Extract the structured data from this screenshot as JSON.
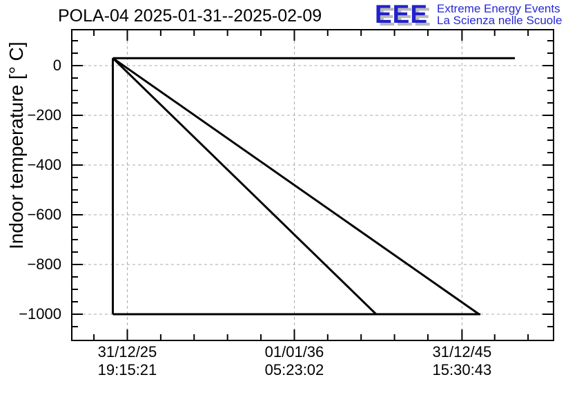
{
  "header": {
    "title": "POLA-04 2025-01-31--2025-02-09"
  },
  "logo": {
    "letters": "EEE",
    "tagline_line1": "Extreme Energy Events",
    "tagline_line2": "La Scienza nelle Scuole",
    "letters_color": "#2121cc",
    "tagline_color": "#2727d6",
    "shadow_color": "#b9b9b9"
  },
  "chart_data": {
    "type": "line",
    "title": "POLA-04 2025-01-31--2025-02-09",
    "xlabel": "",
    "ylabel": "Indoor temperature [° C]",
    "ylim": [
      -1100,
      150
    ],
    "grid": {
      "show": true,
      "style": "dashed",
      "color": "#a9a9a9"
    },
    "frame_color": "#000000",
    "line": {
      "color": "#000000",
      "width": 3
    },
    "yticks": [
      {
        "value": 0,
        "label": "0"
      },
      {
        "value": -200,
        "label": "−200"
      },
      {
        "value": -400,
        "label": "−400"
      },
      {
        "value": -600,
        "label": "−600"
      },
      {
        "value": -800,
        "label": "−800"
      },
      {
        "value": -1000,
        "label": "−1000"
      }
    ],
    "y_minor_step": 50,
    "xticks": [
      {
        "frac": 0.1153,
        "date": "31/12/25",
        "time": "19:15:21"
      },
      {
        "frac": 0.462,
        "date": "01/01/36",
        "time": "05:23:02"
      },
      {
        "frac": 0.81,
        "date": "31/12/45",
        "time": "15:30:43"
      }
    ],
    "x_minor_step_frac": 0.06932,
    "segments_units": {
      "x": "fraction of plot frame width",
      "y": "temperature in °C"
    },
    "segments": [
      {
        "x1": 0.0852,
        "y1": 30,
        "x2": 0.9198,
        "y2": 30
      },
      {
        "x1": 0.0852,
        "y1": 30,
        "x2": 0.0852,
        "y2": -1000
      },
      {
        "x1": 0.0852,
        "y1": -1000,
        "x2": 0.8481,
        "y2": -1000
      },
      {
        "x1": 0.0852,
        "y1": 30,
        "x2": 0.6318,
        "y2": -1000
      },
      {
        "x1": 0.0852,
        "y1": 30,
        "x2": 0.8453,
        "y2": -1000
      }
    ]
  }
}
